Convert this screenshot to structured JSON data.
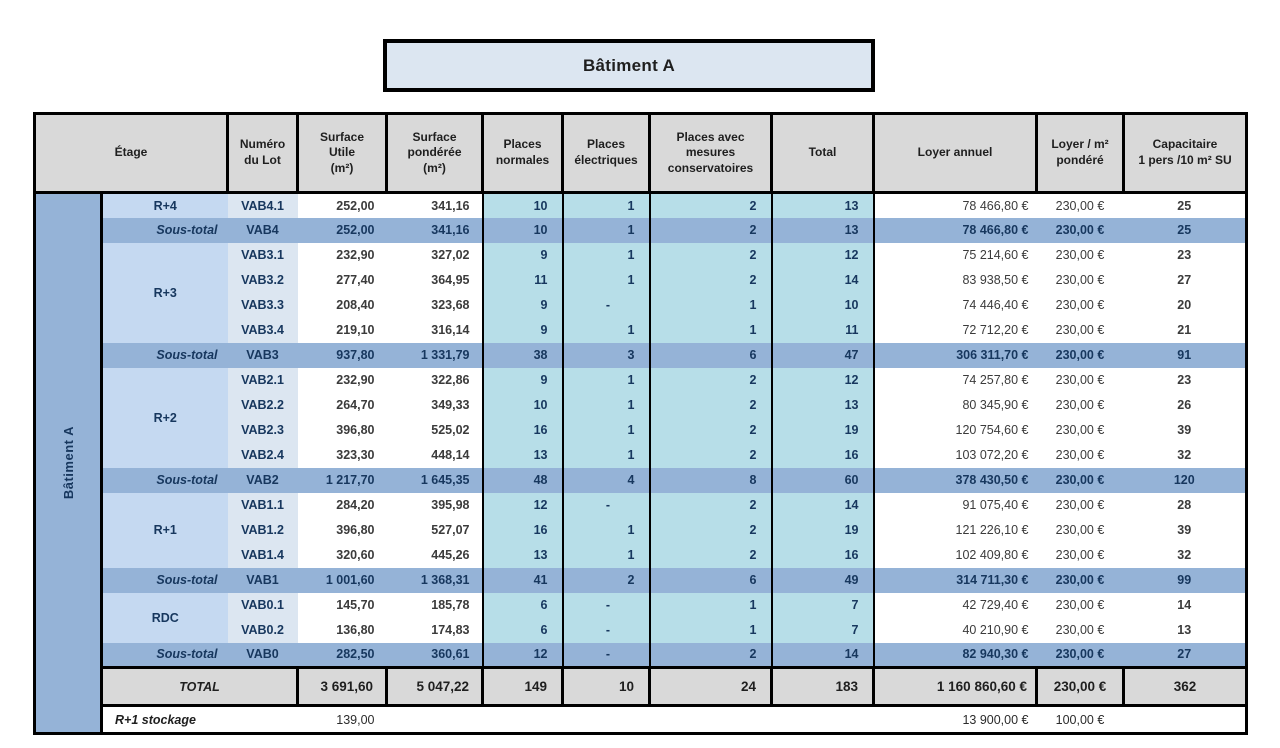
{
  "title": "Bâtiment A",
  "colors": {
    "header_bg": "#D9D9D9",
    "title_bg": "#DCE6F1",
    "strip_bg": "#95B3D7",
    "subtotal_bg": "#95B3D7",
    "etage_bg": "#C5D9F1",
    "lot_bg": "#DCE6F1",
    "places_bg": "#B7DEE8",
    "navy_text": "#17375E"
  },
  "table": {
    "building_label": "Bâtiment A",
    "headers": [
      "Étage",
      "Numéro\ndu Lot",
      "Surface\nUtile\n(m²)",
      "Surface\npondérée\n(m²)",
      "Places\nnormales",
      "Places\nélectriques",
      "Places avec\nmesures\nconservatoires",
      "Total",
      "Loyer annuel",
      "Loyer / m²\npondéré",
      "Capacitaire\n1 pers /10 m² SU"
    ],
    "rows": [
      {
        "type": "lot",
        "etage": "R+4",
        "etage_rowspan": 1,
        "lot": "VAB4.1",
        "su": "252,00",
        "sp": "341,16",
        "pn": "10",
        "pe": "1",
        "pmc": "2",
        "total": "13",
        "loyer": "78 466,80 €",
        "loyer_m2": "230,00 €",
        "cap": "25"
      },
      {
        "type": "subtotal",
        "label": "Sous-total",
        "lot": "VAB4",
        "su": "252,00",
        "sp": "341,16",
        "pn": "10",
        "pe": "1",
        "pmc": "2",
        "total": "13",
        "loyer": "78 466,80 €",
        "loyer_m2": "230,00 €",
        "cap": "25"
      },
      {
        "type": "lot",
        "etage": "R+3",
        "etage_rowspan": 4,
        "lot": "VAB3.1",
        "su": "232,90",
        "sp": "327,02",
        "pn": "9",
        "pe": "1",
        "pmc": "2",
        "total": "12",
        "loyer": "75 214,60 €",
        "loyer_m2": "230,00 €",
        "cap": "23"
      },
      {
        "type": "lot",
        "lot": "VAB3.2",
        "su": "277,40",
        "sp": "364,95",
        "pn": "11",
        "pe": "1",
        "pmc": "2",
        "total": "14",
        "loyer": "83 938,50 €",
        "loyer_m2": "230,00 €",
        "cap": "27"
      },
      {
        "type": "lot",
        "lot": "VAB3.3",
        "su": "208,40",
        "sp": "323,68",
        "pn": "9",
        "pe": "-",
        "pmc": "1",
        "total": "10",
        "loyer": "74 446,40 €",
        "loyer_m2": "230,00 €",
        "cap": "20"
      },
      {
        "type": "lot",
        "lot": "VAB3.4",
        "su": "219,10",
        "sp": "316,14",
        "pn": "9",
        "pe": "1",
        "pmc": "1",
        "total": "11",
        "loyer": "72 712,20 €",
        "loyer_m2": "230,00 €",
        "cap": "21"
      },
      {
        "type": "subtotal",
        "label": "Sous-total",
        "lot": "VAB3",
        "su": "937,80",
        "sp": "1 331,79",
        "pn": "38",
        "pe": "3",
        "pmc": "6",
        "total": "47",
        "loyer": "306 311,70 €",
        "loyer_m2": "230,00 €",
        "cap": "91"
      },
      {
        "type": "lot",
        "etage": "R+2",
        "etage_rowspan": 4,
        "lot": "VAB2.1",
        "su": "232,90",
        "sp": "322,86",
        "pn": "9",
        "pe": "1",
        "pmc": "2",
        "total": "12",
        "loyer": "74 257,80 €",
        "loyer_m2": "230,00 €",
        "cap": "23"
      },
      {
        "type": "lot",
        "lot": "VAB2.2",
        "su": "264,70",
        "sp": "349,33",
        "pn": "10",
        "pe": "1",
        "pmc": "2",
        "total": "13",
        "loyer": "80 345,90 €",
        "loyer_m2": "230,00 €",
        "cap": "26"
      },
      {
        "type": "lot",
        "lot": "VAB2.3",
        "su": "396,80",
        "sp": "525,02",
        "pn": "16",
        "pe": "1",
        "pmc": "2",
        "total": "19",
        "loyer": "120 754,60 €",
        "loyer_m2": "230,00 €",
        "cap": "39"
      },
      {
        "type": "lot",
        "lot": "VAB2.4",
        "su": "323,30",
        "sp": "448,14",
        "pn": "13",
        "pe": "1",
        "pmc": "2",
        "total": "16",
        "loyer": "103 072,20 €",
        "loyer_m2": "230,00 €",
        "cap": "32"
      },
      {
        "type": "subtotal",
        "label": "Sous-total",
        "lot": "VAB2",
        "su": "1 217,70",
        "sp": "1 645,35",
        "pn": "48",
        "pe": "4",
        "pmc": "8",
        "total": "60",
        "loyer": "378 430,50 €",
        "loyer_m2": "230,00 €",
        "cap": "120"
      },
      {
        "type": "lot",
        "etage": "R+1",
        "etage_rowspan": 3,
        "lot": "VAB1.1",
        "su": "284,20",
        "sp": "395,98",
        "pn": "12",
        "pe": "-",
        "pmc": "2",
        "total": "14",
        "loyer": "91 075,40 €",
        "loyer_m2": "230,00 €",
        "cap": "28"
      },
      {
        "type": "lot",
        "lot": "VAB1.2",
        "su": "396,80",
        "sp": "527,07",
        "pn": "16",
        "pe": "1",
        "pmc": "2",
        "total": "19",
        "loyer": "121 226,10 €",
        "loyer_m2": "230,00 €",
        "cap": "39"
      },
      {
        "type": "lot",
        "lot": "VAB1.4",
        "su": "320,60",
        "sp": "445,26",
        "pn": "13",
        "pe": "1",
        "pmc": "2",
        "total": "16",
        "loyer": "102 409,80 €",
        "loyer_m2": "230,00 €",
        "cap": "32"
      },
      {
        "type": "subtotal",
        "label": "Sous-total",
        "lot": "VAB1",
        "su": "1 001,60",
        "sp": "1 368,31",
        "pn": "41",
        "pe": "2",
        "pmc": "6",
        "total": "49",
        "loyer": "314 711,30 €",
        "loyer_m2": "230,00 €",
        "cap": "99"
      },
      {
        "type": "lot",
        "etage": "RDC",
        "etage_rowspan": 2,
        "lot": "VAB0.1",
        "su": "145,70",
        "sp": "185,78",
        "pn": "6",
        "pe": "-",
        "pmc": "1",
        "total": "7",
        "loyer": "42 729,40 €",
        "loyer_m2": "230,00 €",
        "cap": "14"
      },
      {
        "type": "lot",
        "lot": "VAB0.2",
        "su": "136,80",
        "sp": "174,83",
        "pn": "6",
        "pe": "-",
        "pmc": "1",
        "total": "7",
        "loyer": "40 210,90 €",
        "loyer_m2": "230,00 €",
        "cap": "13"
      },
      {
        "type": "subtotal",
        "label": "Sous-total",
        "lot": "VAB0",
        "su": "282,50",
        "sp": "360,61",
        "pn": "12",
        "pe": "-",
        "pmc": "2",
        "total": "14",
        "loyer": "82 940,30 €",
        "loyer_m2": "230,00 €",
        "cap": "27"
      }
    ],
    "total_row": {
      "label": "TOTAL",
      "su": "3 691,60",
      "sp": "5 047,22",
      "pn": "149",
      "pe": "10",
      "pmc": "24",
      "total": "183",
      "loyer": "1 160 860,60 €",
      "loyer_m2": "230,00 €",
      "cap": "362"
    },
    "stockage_row": {
      "label": "R+1 stockage",
      "su": "139,00",
      "loyer": "13 900,00 €",
      "loyer_m2": "100,00 €"
    }
  }
}
